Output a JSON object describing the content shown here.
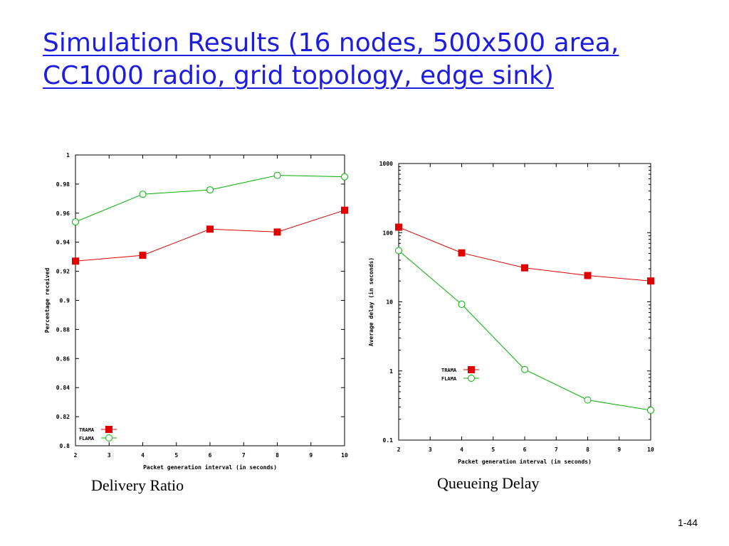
{
  "slide": {
    "title_line1": "Simulation Results (16 nodes, 500x500 area,",
    "title_line2": "CC1000 radio, grid topology, edge sink)",
    "caption_left": "Delivery Ratio",
    "caption_right": "Queueing Delay",
    "page_number": "1-44",
    "title_color": "#1d1de0"
  },
  "chart_data": [
    {
      "type": "line",
      "title": "",
      "xlabel": "Packet generation interval (in seconds)",
      "ylabel": "Percentage received",
      "xlim": [
        2,
        10
      ],
      "ylim": [
        0.8,
        1.0
      ],
      "yscale": "linear",
      "x_ticks": [
        2,
        3,
        4,
        5,
        6,
        7,
        8,
        9,
        10
      ],
      "y_ticks": [
        0.8,
        0.82,
        0.84,
        0.86,
        0.88,
        0.9,
        0.92,
        0.94,
        0.96,
        0.98,
        1
      ],
      "y_tick_labels": [
        "0.8",
        "0.82",
        "0.84",
        "0.86",
        "0.88",
        "0.9",
        "0.92",
        "0.94",
        "0.96",
        "0.98",
        "1"
      ],
      "legend_position": "bottom-left",
      "grid": false,
      "series": [
        {
          "name": "TRAMA",
          "color": "#e00000",
          "marker": "square",
          "x": [
            2,
            4,
            6,
            8,
            10
          ],
          "y": [
            0.927,
            0.931,
            0.949,
            0.947,
            0.962
          ]
        },
        {
          "name": "FLAMA",
          "color": "#00b000",
          "marker": "circle",
          "x": [
            2,
            4,
            6,
            8,
            10
          ],
          "y": [
            0.954,
            0.973,
            0.976,
            0.986,
            0.985
          ]
        }
      ]
    },
    {
      "type": "line",
      "title": "",
      "xlabel": "Packet generation interval (in seconds)",
      "ylabel": "Average delay (in seconds)",
      "xlim": [
        2,
        10
      ],
      "ylim": [
        0.1,
        1000
      ],
      "yscale": "log",
      "x_ticks": [
        2,
        3,
        4,
        5,
        6,
        7,
        8,
        9,
        10
      ],
      "y_ticks": [
        0.1,
        1,
        10,
        100,
        1000
      ],
      "y_tick_labels": [
        "0.1",
        "1",
        "10",
        "100",
        "1000"
      ],
      "legend_position": "center-left",
      "grid": false,
      "series": [
        {
          "name": "TRAMA",
          "color": "#e00000",
          "marker": "square",
          "x": [
            2,
            4,
            6,
            8,
            10
          ],
          "y": [
            120,
            51,
            31,
            24,
            20
          ]
        },
        {
          "name": "FLAMA",
          "color": "#00b000",
          "marker": "circle",
          "x": [
            2,
            4,
            6,
            8,
            10
          ],
          "y": [
            55,
            9.2,
            1.05,
            0.38,
            0.27
          ]
        }
      ]
    }
  ]
}
